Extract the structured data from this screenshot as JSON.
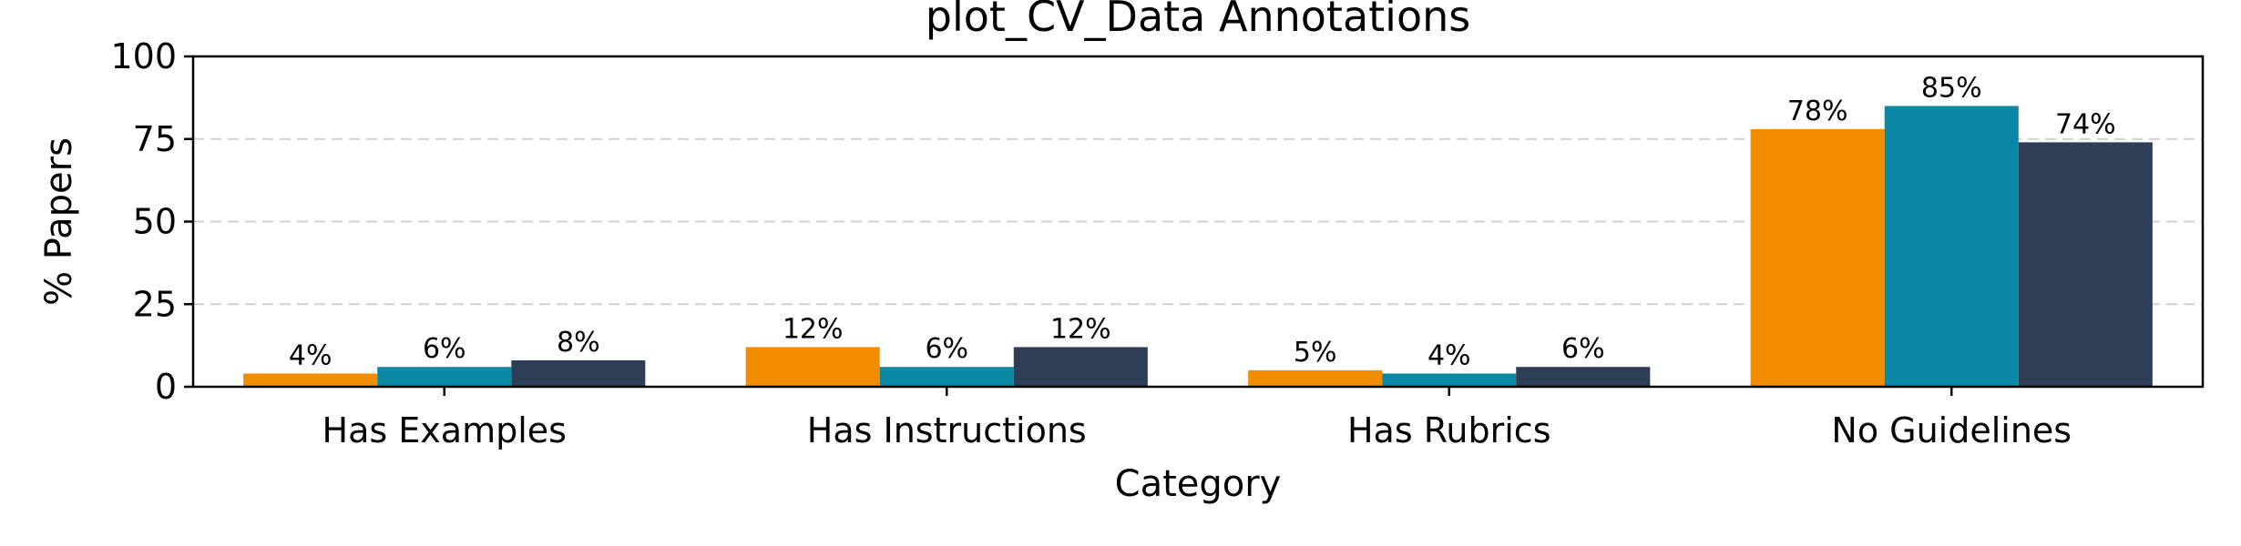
{
  "chart_data": {
    "type": "bar",
    "title": "plot_CV_Data Annotations",
    "xlabel": "Category",
    "ylabel": "% Papers",
    "categories": [
      "Has Examples",
      "Has Instructions",
      "Has Rubrics",
      "No Guidelines"
    ],
    "ylim": [
      0,
      100
    ],
    "yticks": [
      0,
      25,
      50,
      75,
      100
    ],
    "grid": "horizontal dashed",
    "legend": "none",
    "series": [
      {
        "color": "#f28c00",
        "values": [
          4,
          12,
          5,
          78
        ],
        "labels": [
          "4%",
          "12%",
          "5%",
          "78%"
        ]
      },
      {
        "color": "#0a88a6",
        "values": [
          6,
          6,
          4,
          85
        ],
        "labels": [
          "6%",
          "6%",
          "4%",
          "85%"
        ]
      },
      {
        "color": "#2e3e56",
        "values": [
          8,
          12,
          6,
          74
        ],
        "labels": [
          "8%",
          "12%",
          "6%",
          "74%"
        ]
      }
    ]
  }
}
